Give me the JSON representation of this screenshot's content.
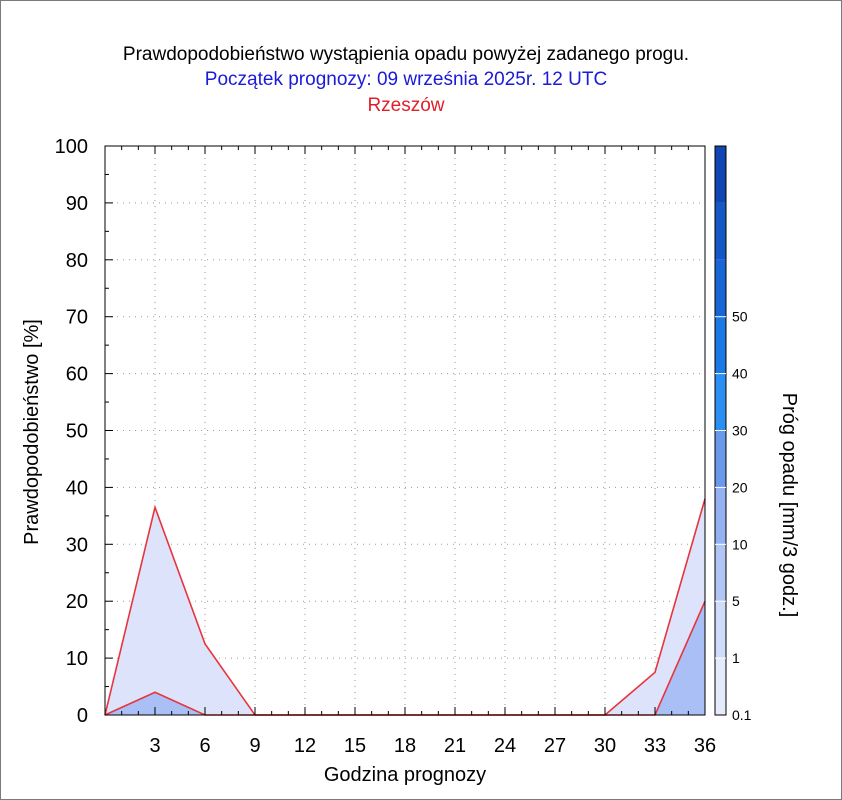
{
  "chart_data": {
    "type": "area",
    "title": "Prawdopodobieństwo wystąpienia opadu powyżej zadanego progu.",
    "subtitle": "Początek prognozy: 09 września 2025r. 12 UTC",
    "location": "Rzeszów",
    "xlabel": "Godzina prognozy",
    "ylabel": "Prawdopodobieństwo [%]",
    "xlim": [
      0,
      36
    ],
    "ylim": [
      0,
      100
    ],
    "xticks": [
      3,
      6,
      9,
      12,
      15,
      18,
      21,
      24,
      27,
      30,
      33,
      36
    ],
    "yticks": [
      0,
      10,
      20,
      30,
      40,
      50,
      60,
      70,
      80,
      90,
      100
    ],
    "grid": true,
    "x": [
      0,
      3,
      6,
      9,
      12,
      15,
      18,
      21,
      24,
      27,
      30,
      33,
      36
    ],
    "series": [
      {
        "threshold": 0.1,
        "color": "#dce3fb",
        "values": [
          0,
          36.5,
          12.5,
          0,
          0,
          0,
          0,
          0,
          0,
          0,
          0,
          7.5,
          38
        ]
      },
      {
        "threshold": 1,
        "color": "#a9bff5",
        "values": [
          0,
          4,
          0,
          0,
          0,
          0,
          0,
          0,
          0,
          0,
          0,
          0,
          20
        ]
      }
    ],
    "colorbar": {
      "label": "Próg opadu [mm/3 godz.]",
      "tick_labels": [
        "0.1",
        "1",
        "5",
        "10",
        "20",
        "30",
        "40",
        "50"
      ],
      "colors": [
        "#e6ebfc",
        "#cfdcfa",
        "#b2c6f6",
        "#94b2f1",
        "#6a99ec",
        "#2b8ef2",
        "#1a79e4",
        "#1866d6",
        "#1458c7",
        "#0f46b3"
      ]
    }
  }
}
